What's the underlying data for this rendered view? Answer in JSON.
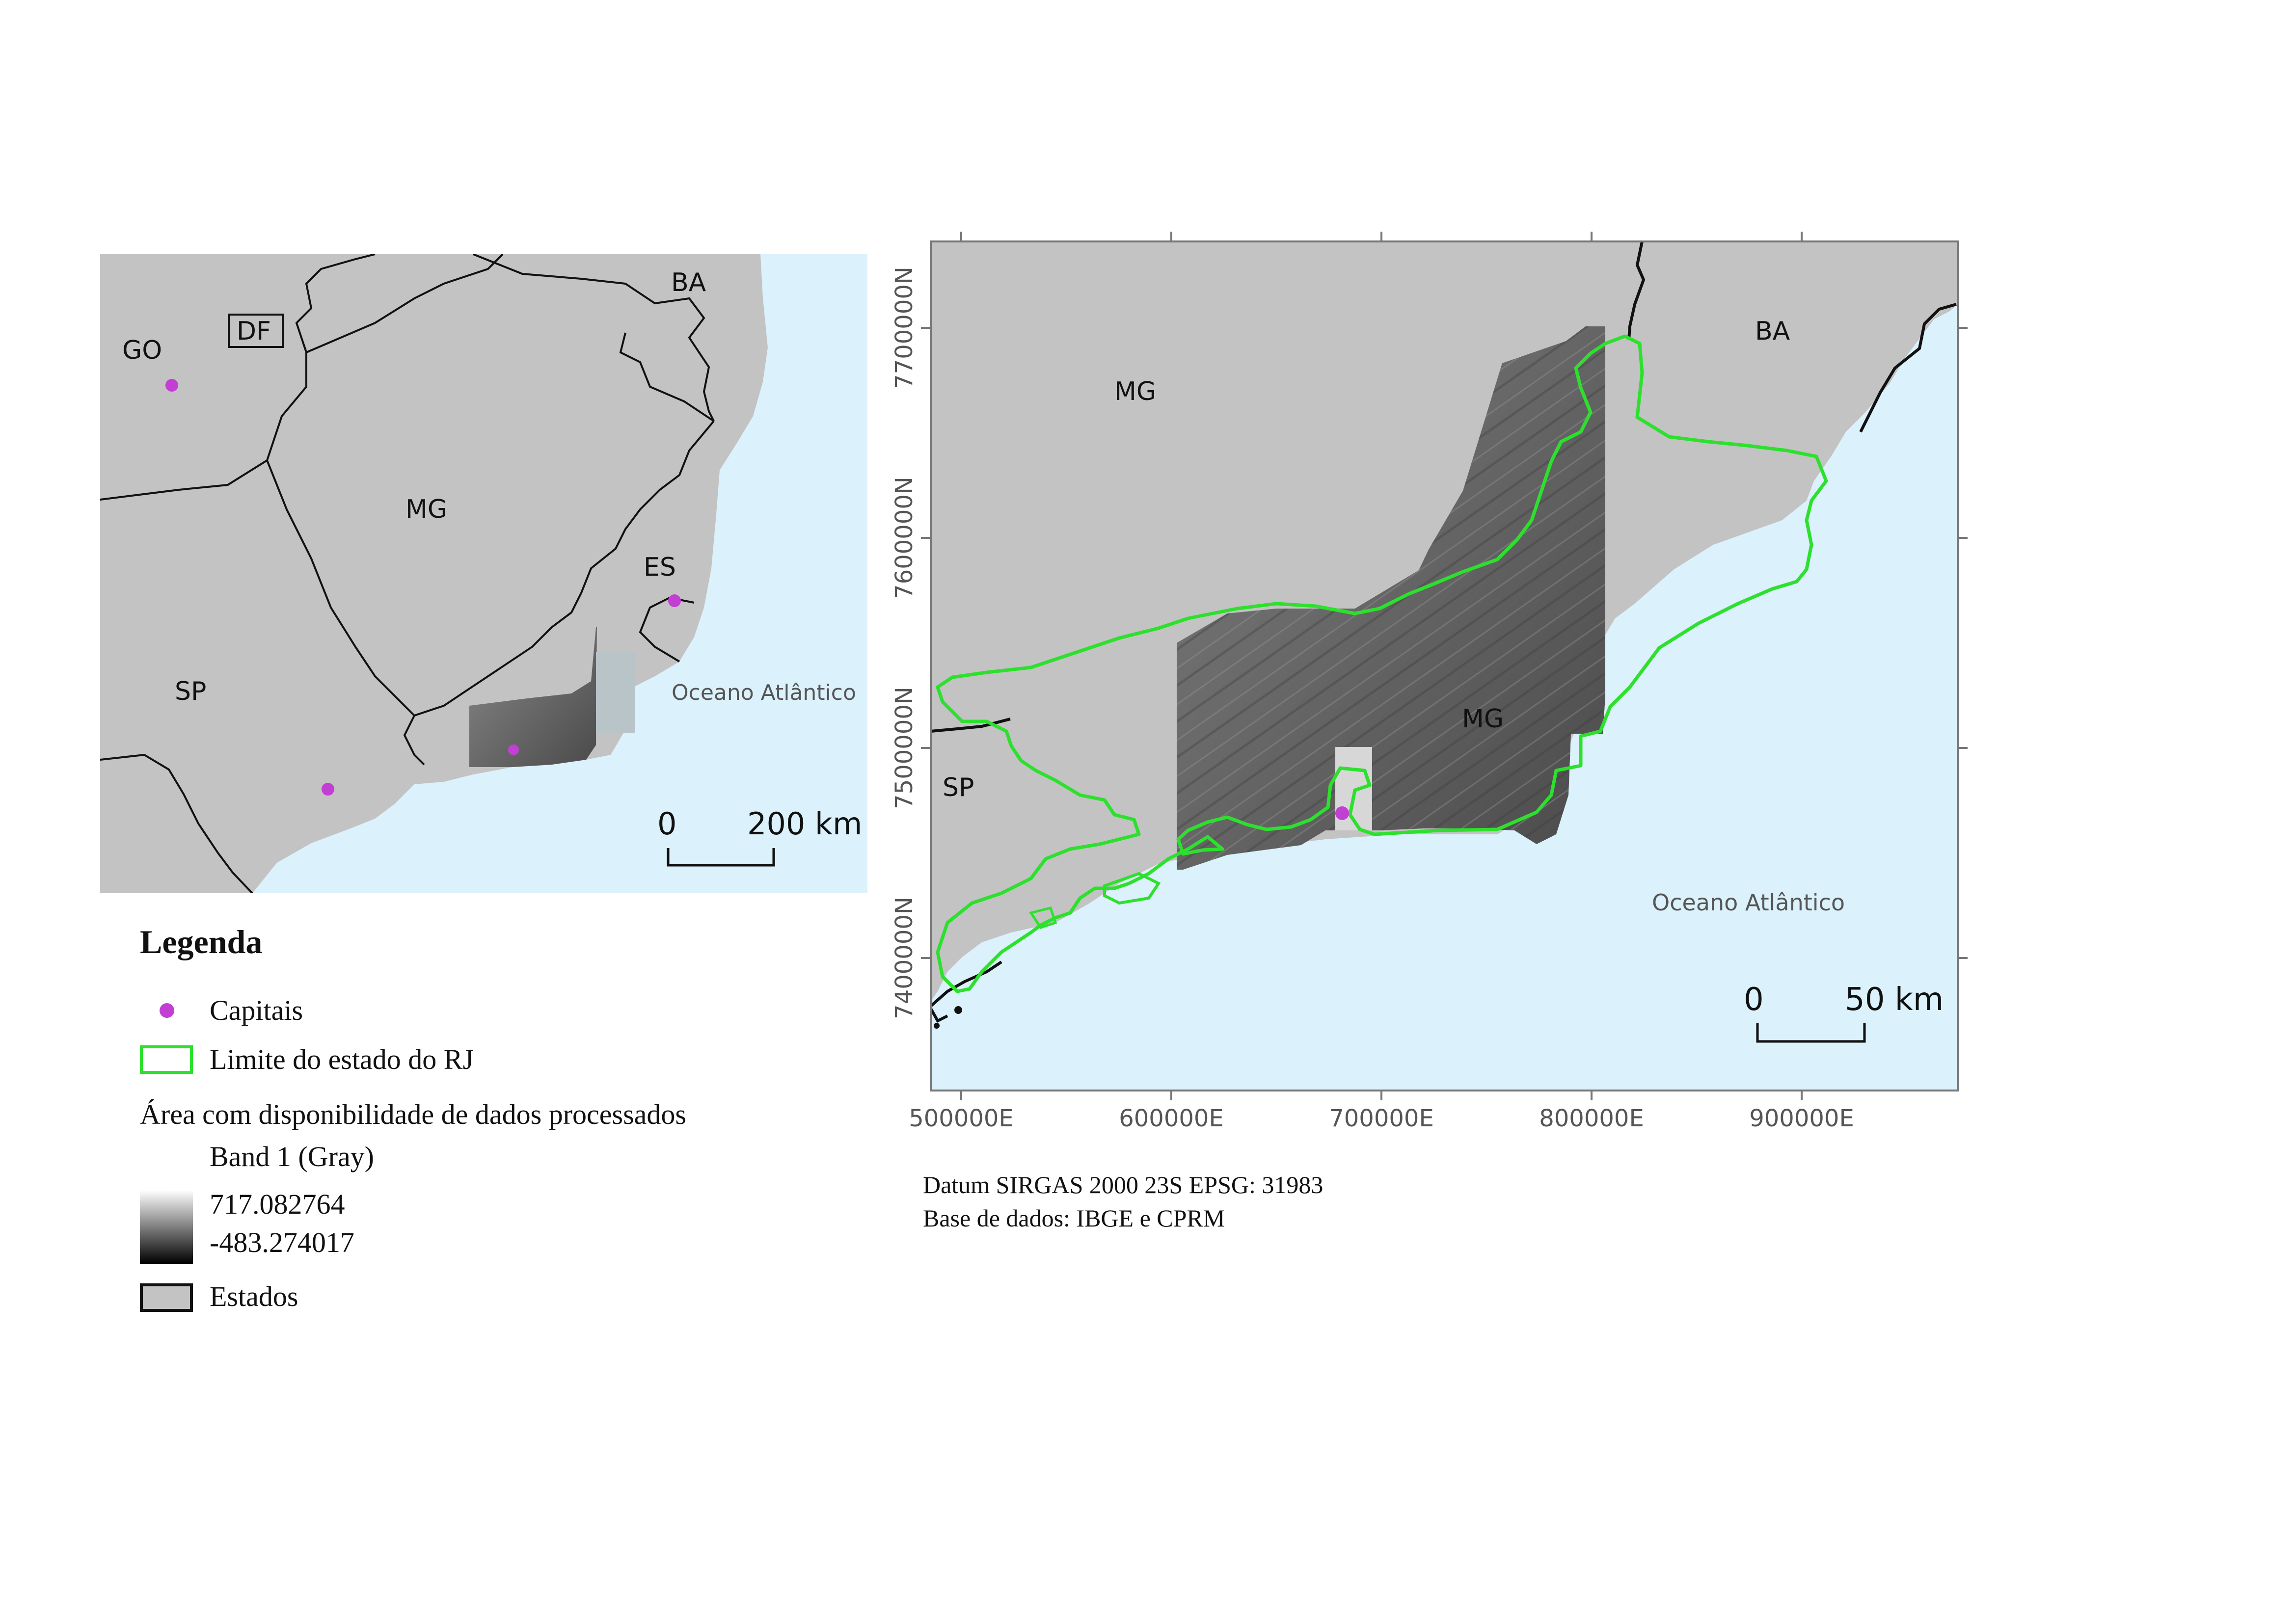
{
  "colors": {
    "ocean": "#dbf1fb",
    "land": "#c3c3c3",
    "border": "#111111",
    "rj_limit": "#2ee02e",
    "capital": "#c13fd3"
  },
  "inset_map": {
    "labels": [
      "GO",
      "DF",
      "BA",
      "MG",
      "ES",
      "SP"
    ],
    "ocean_label": "Oceano Atlântico",
    "scale": {
      "start": "0",
      "end": "200 km"
    }
  },
  "main_map": {
    "labels": [
      "MG",
      "BA",
      "MG",
      "SP"
    ],
    "ocean_label": "Oceano Atlântico",
    "scale": {
      "start": "0",
      "end": "50 km"
    },
    "x_ticks": [
      "500000E",
      "600000E",
      "700000E",
      "800000E",
      "900000E"
    ],
    "y_ticks": [
      "7700000N",
      "7600000N",
      "7500000N",
      "7400000N"
    ]
  },
  "legend": {
    "title": "Legenda",
    "capitals": "Capitais",
    "rj_limit": "Limite do estado do RJ",
    "processed_area": "Área com disponibilidade de dados processados",
    "band": "Band 1 (Gray)",
    "max": "717.082764",
    "min": "-483.274017",
    "states": "Estados"
  },
  "credits": {
    "datum": "Datum SIRGAS 2000 23S EPSG: 31983",
    "source": "Base de dados: IBGE e CPRM"
  }
}
